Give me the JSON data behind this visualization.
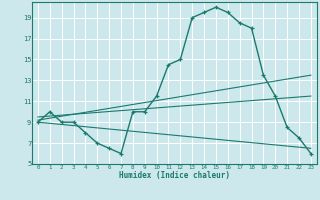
{
  "title": "",
  "xlabel": "Humidex (Indice chaleur)",
  "ylabel": "",
  "bg_color": "#cde8ec",
  "grid_color": "#ffffff",
  "line_color": "#1a7a6e",
  "xlim": [
    -0.5,
    23.5
  ],
  "ylim": [
    5,
    20.5
  ],
  "yticks": [
    5,
    7,
    9,
    11,
    13,
    15,
    17,
    19
  ],
  "xticks": [
    0,
    1,
    2,
    3,
    4,
    5,
    6,
    7,
    8,
    9,
    10,
    11,
    12,
    13,
    14,
    15,
    16,
    17,
    18,
    19,
    20,
    21,
    22,
    23
  ],
  "line1_x": [
    0,
    1,
    2,
    3,
    4,
    5,
    6,
    7,
    8,
    9,
    10,
    11,
    12,
    13,
    14,
    15,
    16,
    17,
    18,
    19,
    20,
    21,
    22,
    23
  ],
  "line1_y": [
    9.0,
    10.0,
    9.0,
    9.0,
    8.0,
    7.0,
    6.5,
    6.0,
    10.0,
    10.0,
    11.5,
    14.5,
    15.0,
    19.0,
    19.5,
    20.0,
    19.5,
    18.5,
    18.0,
    13.5,
    11.5,
    8.5,
    7.5,
    6.0
  ],
  "line2_x": [
    0,
    23
  ],
  "line2_y": [
    9.2,
    13.5
  ],
  "line3_x": [
    0,
    23
  ],
  "line3_y": [
    9.5,
    11.5
  ],
  "line4_x": [
    0,
    23
  ],
  "line4_y": [
    9.0,
    6.5
  ]
}
